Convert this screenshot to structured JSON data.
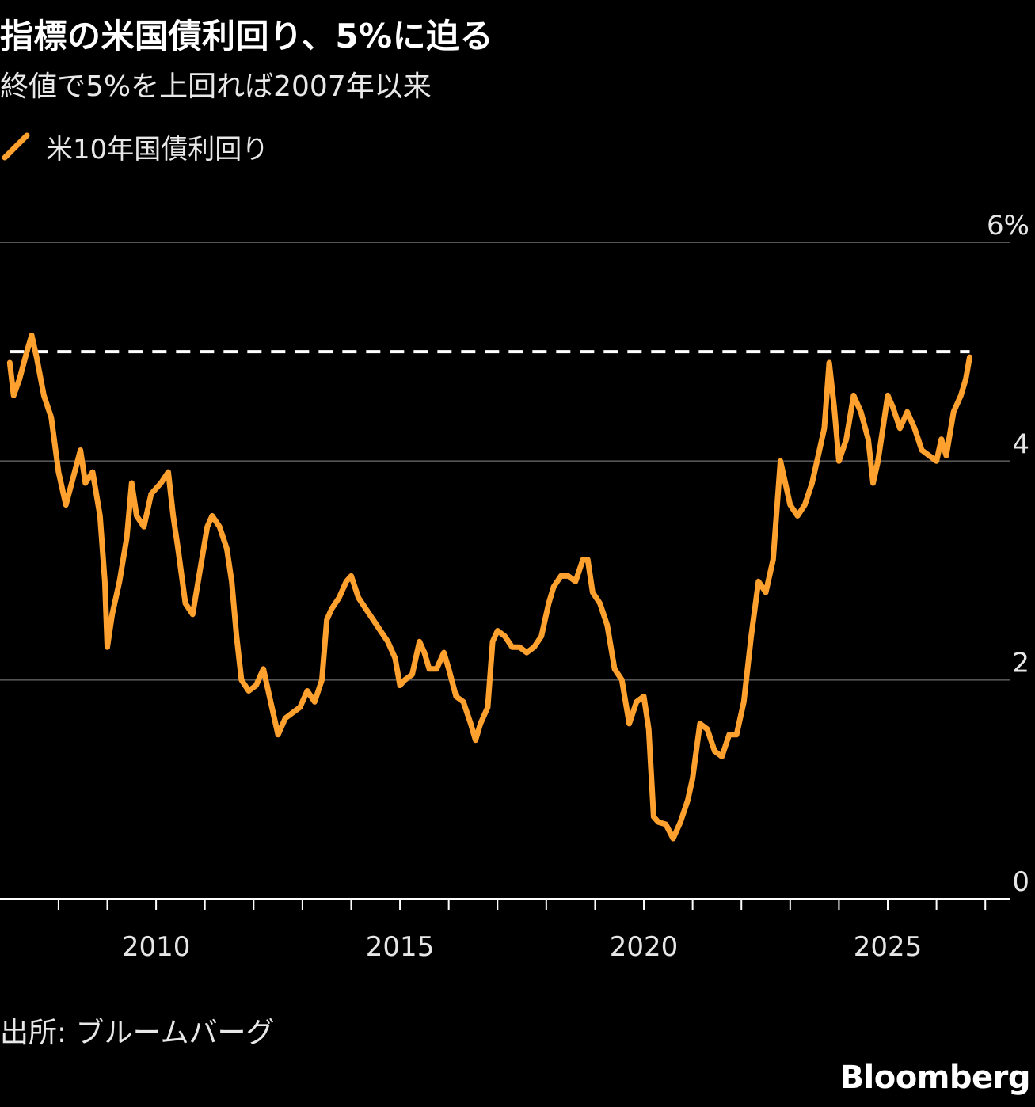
{
  "title": "指標の米国債利回り、5%に迫る",
  "subtitle": "終値で5%を上回れば2007年以来",
  "source": "出所: ブルームバーグ",
  "logo": "Bloomberg",
  "colors": {
    "line": "#FFA12E",
    "background": "#000000",
    "grid": "#555555",
    "reference": "#FFFFFF"
  },
  "chart_data": {
    "type": "line",
    "title": "指標の米国債利回り、5%に迫る",
    "subtitle": "終値で5%を上回れば2007年以来",
    "legend": "top-left",
    "grid": true,
    "xlim": [
      2006.8,
      2027.5
    ],
    "ylim": [
      0,
      6
    ],
    "y_ticks": [
      {
        "value": 0,
        "label": "0"
      },
      {
        "value": 2,
        "label": "2"
      },
      {
        "value": 4,
        "label": "4"
      },
      {
        "value": 6,
        "label": "6%"
      }
    ],
    "x_tick_labels": [
      {
        "value": 2010,
        "label": "2010"
      },
      {
        "value": 2015,
        "label": "2015"
      },
      {
        "value": 2020,
        "label": "2020"
      },
      {
        "value": 2025,
        "label": "2025"
      }
    ],
    "x_minor_ticks": [
      2008,
      2009,
      2010,
      2011,
      2012,
      2013,
      2014,
      2015,
      2016,
      2017,
      2018,
      2019,
      2020,
      2021,
      2022,
      2023,
      2024,
      2025,
      2026,
      2027
    ],
    "reference_line": {
      "y": 5.0,
      "style": "dashed"
    },
    "series": [
      {
        "name": "米10年国債利回り",
        "points": [
          [
            2007.0,
            4.9
          ],
          [
            2007.08,
            4.6
          ],
          [
            2007.2,
            4.75
          ],
          [
            2007.35,
            5.0
          ],
          [
            2007.45,
            5.15
          ],
          [
            2007.55,
            4.95
          ],
          [
            2007.7,
            4.6
          ],
          [
            2007.85,
            4.4
          ],
          [
            2008.0,
            3.9
          ],
          [
            2008.15,
            3.6
          ],
          [
            2008.3,
            3.85
          ],
          [
            2008.45,
            4.1
          ],
          [
            2008.55,
            3.8
          ],
          [
            2008.7,
            3.9
          ],
          [
            2008.85,
            3.5
          ],
          [
            2008.95,
            2.9
          ],
          [
            2009.0,
            2.3
          ],
          [
            2009.1,
            2.6
          ],
          [
            2009.25,
            2.9
          ],
          [
            2009.4,
            3.3
          ],
          [
            2009.5,
            3.8
          ],
          [
            2009.6,
            3.5
          ],
          [
            2009.75,
            3.4
          ],
          [
            2009.9,
            3.7
          ],
          [
            2010.1,
            3.8
          ],
          [
            2010.25,
            3.9
          ],
          [
            2010.35,
            3.5
          ],
          [
            2010.45,
            3.2
          ],
          [
            2010.6,
            2.7
          ],
          [
            2010.75,
            2.6
          ],
          [
            2010.9,
            3.0
          ],
          [
            2011.05,
            3.4
          ],
          [
            2011.15,
            3.5
          ],
          [
            2011.3,
            3.4
          ],
          [
            2011.45,
            3.2
          ],
          [
            2011.55,
            2.9
          ],
          [
            2011.65,
            2.4
          ],
          [
            2011.75,
            2.0
          ],
          [
            2011.9,
            1.9
          ],
          [
            2012.05,
            1.95
          ],
          [
            2012.2,
            2.1
          ],
          [
            2012.35,
            1.8
          ],
          [
            2012.5,
            1.5
          ],
          [
            2012.65,
            1.65
          ],
          [
            2012.8,
            1.7
          ],
          [
            2012.95,
            1.75
          ],
          [
            2013.1,
            1.9
          ],
          [
            2013.25,
            1.8
          ],
          [
            2013.4,
            2.0
          ],
          [
            2013.5,
            2.55
          ],
          [
            2013.6,
            2.65
          ],
          [
            2013.75,
            2.75
          ],
          [
            2013.9,
            2.9
          ],
          [
            2014.0,
            2.95
          ],
          [
            2014.15,
            2.75
          ],
          [
            2014.3,
            2.65
          ],
          [
            2014.45,
            2.55
          ],
          [
            2014.6,
            2.45
          ],
          [
            2014.75,
            2.35
          ],
          [
            2014.9,
            2.2
          ],
          [
            2015.0,
            1.95
          ],
          [
            2015.1,
            2.0
          ],
          [
            2015.25,
            2.05
          ],
          [
            2015.4,
            2.35
          ],
          [
            2015.5,
            2.25
          ],
          [
            2015.6,
            2.1
          ],
          [
            2015.75,
            2.1
          ],
          [
            2015.9,
            2.25
          ],
          [
            2016.0,
            2.1
          ],
          [
            2016.15,
            1.85
          ],
          [
            2016.3,
            1.8
          ],
          [
            2016.45,
            1.6
          ],
          [
            2016.55,
            1.45
          ],
          [
            2016.65,
            1.6
          ],
          [
            2016.8,
            1.75
          ],
          [
            2016.9,
            2.35
          ],
          [
            2017.0,
            2.45
          ],
          [
            2017.15,
            2.4
          ],
          [
            2017.3,
            2.3
          ],
          [
            2017.45,
            2.3
          ],
          [
            2017.6,
            2.25
          ],
          [
            2017.75,
            2.3
          ],
          [
            2017.9,
            2.4
          ],
          [
            2018.05,
            2.7
          ],
          [
            2018.15,
            2.85
          ],
          [
            2018.3,
            2.95
          ],
          [
            2018.45,
            2.95
          ],
          [
            2018.6,
            2.9
          ],
          [
            2018.75,
            3.1
          ],
          [
            2018.85,
            3.1
          ],
          [
            2018.95,
            2.8
          ],
          [
            2019.1,
            2.7
          ],
          [
            2019.25,
            2.5
          ],
          [
            2019.4,
            2.1
          ],
          [
            2019.55,
            2.0
          ],
          [
            2019.7,
            1.6
          ],
          [
            2019.85,
            1.8
          ],
          [
            2020.0,
            1.85
          ],
          [
            2020.1,
            1.55
          ],
          [
            2020.2,
            0.75
          ],
          [
            2020.3,
            0.7
          ],
          [
            2020.45,
            0.68
          ],
          [
            2020.6,
            0.55
          ],
          [
            2020.75,
            0.7
          ],
          [
            2020.9,
            0.9
          ],
          [
            2021.0,
            1.1
          ],
          [
            2021.15,
            1.6
          ],
          [
            2021.3,
            1.55
          ],
          [
            2021.45,
            1.35
          ],
          [
            2021.6,
            1.3
          ],
          [
            2021.75,
            1.5
          ],
          [
            2021.9,
            1.5
          ],
          [
            2022.05,
            1.8
          ],
          [
            2022.2,
            2.4
          ],
          [
            2022.35,
            2.9
          ],
          [
            2022.5,
            2.8
          ],
          [
            2022.65,
            3.1
          ],
          [
            2022.8,
            4.0
          ],
          [
            2022.9,
            3.8
          ],
          [
            2023.0,
            3.6
          ],
          [
            2023.15,
            3.5
          ],
          [
            2023.3,
            3.6
          ],
          [
            2023.45,
            3.8
          ],
          [
            2023.6,
            4.1
          ],
          [
            2023.7,
            4.3
          ],
          [
            2023.8,
            4.9
          ],
          [
            2023.9,
            4.5
          ],
          [
            2024.0,
            4.0
          ],
          [
            2024.15,
            4.2
          ],
          [
            2024.3,
            4.6
          ],
          [
            2024.45,
            4.45
          ],
          [
            2024.6,
            4.2
          ],
          [
            2024.7,
            3.8
          ],
          [
            2024.8,
            4.0
          ],
          [
            2024.9,
            4.3
          ],
          [
            2025.0,
            4.6
          ],
          [
            2025.1,
            4.5
          ],
          [
            2025.25,
            4.3
          ],
          [
            2025.4,
            4.45
          ],
          [
            2025.55,
            4.3
          ],
          [
            2025.7,
            4.1
          ],
          [
            2025.85,
            4.05
          ],
          [
            2026.0,
            4.0
          ],
          [
            2026.1,
            4.2
          ],
          [
            2026.2,
            4.05
          ],
          [
            2026.35,
            4.45
          ],
          [
            2026.5,
            4.6
          ],
          [
            2026.6,
            4.75
          ],
          [
            2026.68,
            4.95
          ]
        ]
      }
    ]
  }
}
